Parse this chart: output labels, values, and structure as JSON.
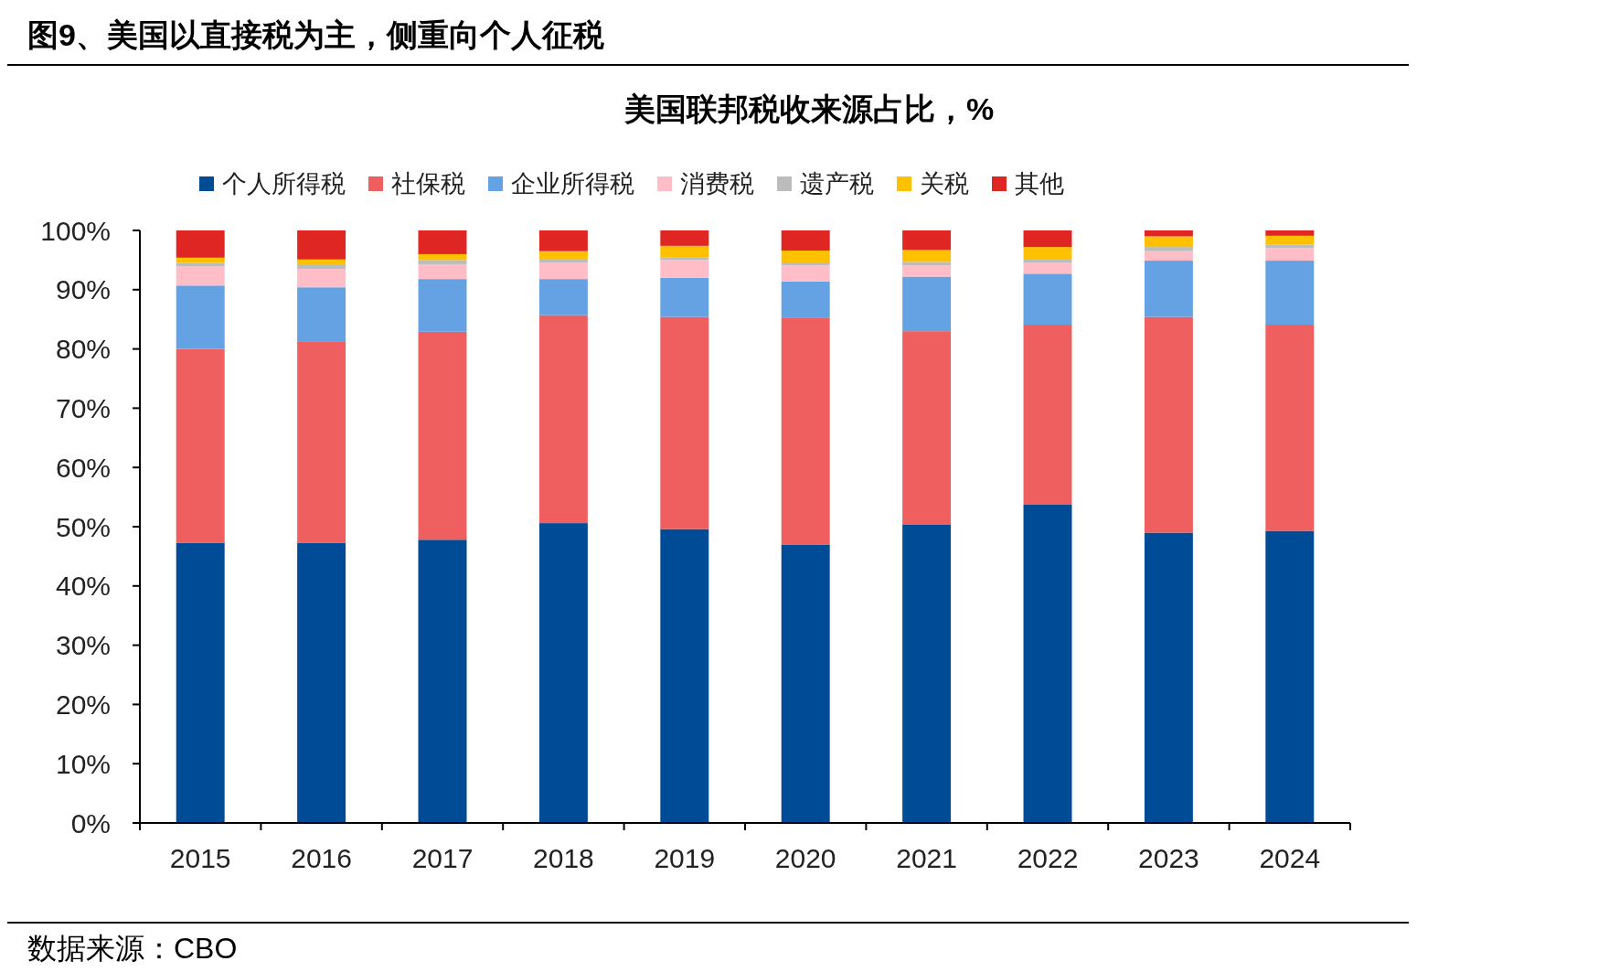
{
  "chart_data": {
    "type": "bar",
    "stacked": true,
    "title": "美国联邦税收来源占比，%",
    "subtitle": "图9、美国以直接税为主，侧重向个人征税",
    "annotations": [
      "数据来源：CBO"
    ],
    "categories": [
      "2015",
      "2016",
      "2017",
      "2018",
      "2019",
      "2020",
      "2021",
      "2022",
      "2023",
      "2024"
    ],
    "series": [
      {
        "name": "个人所得税",
        "color": "#004b96",
        "values": [
          47.3,
          47.3,
          47.8,
          50.6,
          49.6,
          47.0,
          50.4,
          53.7,
          49.0,
          49.3
        ]
      },
      {
        "name": "社保税",
        "color": "#ef5f5f",
        "values": [
          32.7,
          34.0,
          35.1,
          35.1,
          35.8,
          38.2,
          32.6,
          30.4,
          36.4,
          34.8
        ]
      },
      {
        "name": "企业所得税",
        "color": "#65a2e4",
        "values": [
          10.7,
          9.1,
          8.9,
          6.1,
          6.6,
          6.2,
          9.2,
          8.6,
          9.5,
          10.8
        ]
      },
      {
        "name": "消费税",
        "color": "#ffbdc8",
        "values": [
          3.2,
          3.1,
          2.5,
          2.8,
          3.0,
          2.7,
          1.9,
          1.9,
          1.6,
          2.1
        ]
      },
      {
        "name": "遗产税",
        "color": "#bcbcbc",
        "values": [
          0.6,
          0.8,
          0.7,
          0.6,
          0.4,
          0.5,
          0.6,
          0.6,
          0.7,
          0.6
        ]
      },
      {
        "name": "关税",
        "color": "#ffc000",
        "values": [
          0.9,
          0.8,
          1.0,
          1.3,
          2.0,
          2.0,
          2.0,
          2.0,
          1.8,
          1.5
        ]
      },
      {
        "name": "其他",
        "color": "#df2622",
        "values": [
          4.6,
          4.9,
          4.0,
          3.5,
          2.6,
          3.4,
          3.3,
          2.8,
          1.0,
          0.9
        ]
      }
    ],
    "ylim": [
      0,
      100
    ],
    "yticks": [
      {
        "value": 0,
        "label": "0%"
      },
      {
        "value": 10,
        "label": "10%"
      },
      {
        "value": 20,
        "label": "20%"
      },
      {
        "value": 30,
        "label": "30%"
      },
      {
        "value": 40,
        "label": "40%"
      },
      {
        "value": 50,
        "label": "50%"
      },
      {
        "value": 60,
        "label": "60%"
      },
      {
        "value": 70,
        "label": "70%"
      },
      {
        "value": 80,
        "label": "80%"
      },
      {
        "value": 90,
        "label": "90%"
      },
      {
        "value": 100,
        "label": "100%"
      }
    ],
    "legend": "top",
    "grid": false
  }
}
